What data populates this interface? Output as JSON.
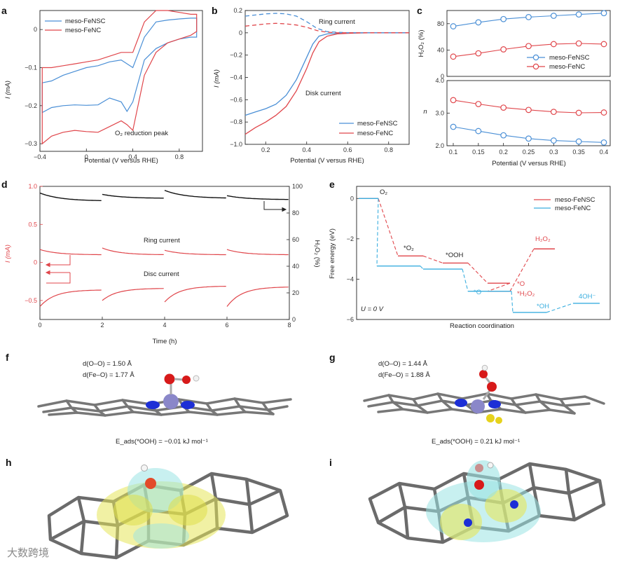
{
  "colors": {
    "blue": "#4a8fd6",
    "red": "#e0464b",
    "black": "#111111",
    "cyan": "#3aaedf",
    "molgray": "#777777"
  },
  "panels": {
    "a": "a",
    "b": "b",
    "c": "c",
    "d": "d",
    "e": "e",
    "f": "f",
    "g": "g",
    "h": "h",
    "i": "i"
  },
  "watermark": "大数跨境",
  "chart_data": [
    {
      "id": "a",
      "type": "line",
      "xlabel": "Potential (V versus RHE)",
      "ylabel": "I (mA)",
      "xlim": [
        -0.4,
        1.0
      ],
      "ylim": [
        -0.32,
        0.05
      ],
      "xticks": [
        -0.4,
        0.0,
        0.4,
        0.8
      ],
      "xtick_labels": [
        "−0.4",
        "0",
        "0.4",
        "0.8"
      ],
      "yticks": [
        0,
        -0.1,
        -0.2,
        -0.3
      ],
      "ytick_labels": [
        "0",
        "−0.1",
        "−0.2",
        "−0.3"
      ],
      "legend": [
        "meso-FeNSC",
        "meso-FeNC"
      ],
      "annotation": "O₂ reduction peak",
      "series": [
        {
          "name": "meso-FeNSC",
          "color": "blue",
          "x": [
            -0.38,
            -0.3,
            -0.2,
            -0.1,
            0.0,
            0.1,
            0.2,
            0.3,
            0.35,
            0.4,
            0.5,
            0.6,
            0.7,
            0.8,
            0.9,
            0.95,
            0.95,
            0.9,
            0.8,
            0.7,
            0.6,
            0.5,
            0.45,
            0.4,
            0.3,
            0.2,
            0.1,
            0.0,
            -0.1,
            -0.2,
            -0.3,
            -0.38
          ],
          "y": [
            -0.218,
            -0.205,
            -0.2,
            -0.198,
            -0.199,
            -0.198,
            -0.18,
            -0.19,
            -0.215,
            -0.19,
            -0.08,
            -0.05,
            -0.035,
            -0.025,
            -0.02,
            -0.02,
            0.03,
            0.03,
            0.028,
            0.025,
            0.02,
            -0.02,
            -0.06,
            -0.1,
            -0.08,
            -0.085,
            -0.095,
            -0.1,
            -0.11,
            -0.12,
            -0.135,
            -0.14
          ]
        },
        {
          "name": "meso-FeNC",
          "color": "red",
          "x": [
            -0.38,
            -0.3,
            -0.2,
            -0.1,
            0.0,
            0.1,
            0.2,
            0.3,
            0.35,
            0.4,
            0.5,
            0.6,
            0.7,
            0.8,
            0.9,
            0.95,
            0.95,
            0.9,
            0.8,
            0.7,
            0.6,
            0.5,
            0.45,
            0.4,
            0.3,
            0.2,
            0.1,
            0.0,
            -0.1,
            -0.2,
            -0.3,
            -0.38
          ],
          "y": [
            -0.3,
            -0.28,
            -0.27,
            -0.265,
            -0.268,
            -0.27,
            -0.255,
            -0.24,
            -0.25,
            -0.265,
            -0.12,
            -0.06,
            -0.035,
            -0.025,
            -0.015,
            -0.005,
            0.04,
            0.04,
            0.045,
            0.05,
            0.05,
            0.02,
            -0.02,
            -0.06,
            -0.06,
            -0.07,
            -0.08,
            -0.085,
            -0.09,
            -0.095,
            -0.1,
            -0.1
          ]
        }
      ]
    },
    {
      "id": "b",
      "type": "line",
      "xlabel": "Potential (V versus RHE)",
      "ylabel": "I (mA)",
      "xlim": [
        0.1,
        0.9
      ],
      "ylim": [
        -1.0,
        0.2
      ],
      "xticks": [
        0.2,
        0.4,
        0.6,
        0.8
      ],
      "xtick_labels": [
        "0.2",
        "0.4",
        "0.6",
        "0.8"
      ],
      "yticks": [
        0.2,
        0,
        -0.2,
        -0.4,
        -0.6,
        -0.8,
        -1.0
      ],
      "ytick_labels": [
        "0.2",
        "0",
        "−0.2",
        "−0.4",
        "−0.6",
        "−0.8",
        "−1.0"
      ],
      "legend": [
        "meso-FeNSC",
        "meso-FeNC"
      ],
      "annotations": [
        "Ring current",
        "Disk current"
      ],
      "series": [
        {
          "name": "meso-FeNSC disk",
          "color": "blue",
          "style": "solid",
          "x": [
            0.1,
            0.15,
            0.2,
            0.25,
            0.3,
            0.35,
            0.4,
            0.43,
            0.46,
            0.5,
            0.55,
            0.6,
            0.7,
            0.8,
            0.9
          ],
          "y": [
            -0.74,
            -0.71,
            -0.68,
            -0.64,
            -0.56,
            -0.42,
            -0.22,
            -0.1,
            -0.03,
            -0.01,
            -0.005,
            0,
            0,
            0,
            0
          ]
        },
        {
          "name": "meso-FeNC disk",
          "color": "red",
          "style": "solid",
          "x": [
            0.1,
            0.15,
            0.2,
            0.25,
            0.3,
            0.35,
            0.4,
            0.43,
            0.46,
            0.5,
            0.55,
            0.6,
            0.7,
            0.8,
            0.9
          ],
          "y": [
            -0.91,
            -0.85,
            -0.8,
            -0.74,
            -0.66,
            -0.52,
            -0.32,
            -0.18,
            -0.08,
            -0.03,
            -0.01,
            -0.005,
            0,
            0,
            0
          ]
        },
        {
          "name": "meso-FeNSC ring",
          "color": "blue",
          "style": "dashed",
          "x": [
            0.1,
            0.15,
            0.2,
            0.25,
            0.3,
            0.35,
            0.4,
            0.45,
            0.5,
            0.55,
            0.6,
            0.7,
            0.8,
            0.9
          ],
          "y": [
            0.15,
            0.16,
            0.17,
            0.175,
            0.17,
            0.15,
            0.1,
            0.04,
            0.01,
            0.005,
            0,
            0,
            0,
            0
          ]
        },
        {
          "name": "meso-FeNC ring",
          "color": "red",
          "style": "dashed",
          "x": [
            0.1,
            0.15,
            0.2,
            0.25,
            0.3,
            0.35,
            0.4,
            0.45,
            0.5,
            0.55,
            0.6,
            0.7,
            0.8,
            0.9
          ],
          "y": [
            0.06,
            0.07,
            0.08,
            0.085,
            0.08,
            0.07,
            0.05,
            0.02,
            0.005,
            0,
            0,
            0,
            0,
            0
          ]
        }
      ]
    },
    {
      "id": "c-top",
      "type": "line",
      "ylabel": "H₂O₂ (%)",
      "xlim": [
        0.1,
        0.4
      ],
      "ylim": [
        0,
        100
      ],
      "yticks": [
        0,
        40,
        80
      ],
      "ytick_labels": [
        "0",
        "40",
        "80"
      ],
      "legend": [
        "meso-FeNSC",
        "meso-FeNC"
      ],
      "x": [
        0.1,
        0.15,
        0.2,
        0.25,
        0.3,
        0.35,
        0.4
      ],
      "series": [
        {
          "name": "meso-FeNSC",
          "color": "blue",
          "values": [
            76,
            82,
            87,
            90,
            92,
            94,
            96
          ]
        },
        {
          "name": "meso-FeNC",
          "color": "red",
          "values": [
            30,
            35,
            41,
            46,
            49,
            50,
            49
          ]
        }
      ]
    },
    {
      "id": "c-bottom",
      "type": "line",
      "xlabel": "Potential (V versus RHE)",
      "ylabel": "n",
      "xlim": [
        0.1,
        0.4
      ],
      "ylim": [
        2.0,
        4.0
      ],
      "xticks": [
        0.1,
        0.15,
        0.2,
        0.25,
        0.3,
        0.35,
        0.4
      ],
      "xtick_labels": [
        "0.1",
        "0.15",
        "0.2",
        "0.25",
        "0.3",
        "0.35",
        "0.4"
      ],
      "yticks": [
        2.0,
        3.0,
        4.0
      ],
      "ytick_labels": [
        "2.0",
        "3.0",
        "4.0"
      ],
      "x": [
        0.1,
        0.15,
        0.2,
        0.25,
        0.3,
        0.35,
        0.4
      ],
      "series": [
        {
          "name": "meso-FeNSC",
          "color": "blue",
          "values": [
            2.58,
            2.45,
            2.32,
            2.22,
            2.16,
            2.13,
            2.1
          ]
        },
        {
          "name": "meso-FeNC",
          "color": "red",
          "values": [
            3.4,
            3.28,
            3.17,
            3.1,
            3.04,
            3.01,
            3.02
          ]
        }
      ]
    },
    {
      "id": "d",
      "type": "line",
      "xlabel": "Time (h)",
      "ylabel": "I (mA)",
      "ylabel_right": "H₂O₂ (%)",
      "xlim": [
        0,
        8
      ],
      "ylim": [
        -0.75,
        1.0
      ],
      "ylim_right": [
        0,
        100
      ],
      "xticks": [
        0,
        2,
        4,
        6,
        8
      ],
      "xtick_labels": [
        "0",
        "2",
        "4",
        "6",
        "8"
      ],
      "yticks": [
        1.0,
        0.5,
        0,
        -0.5
      ],
      "ytick_labels": [
        "1.0",
        "0.5",
        "0",
        "−0.5"
      ],
      "yticks_right": [
        100,
        80,
        60,
        40,
        20,
        0
      ],
      "ytick_labels_right": [
        "100",
        "80",
        "60",
        "40",
        "20",
        "0"
      ],
      "annotations": [
        "Ring current",
        "Disc current"
      ],
      "segments": [
        0,
        2,
        4,
        6,
        8
      ],
      "h2o2_start": [
        95,
        94,
        97,
        93
      ],
      "h2o2_end": [
        89,
        91,
        91,
        90
      ],
      "ring_start": [
        0.17,
        0.19,
        0.16,
        0.17
      ],
      "ring_end": [
        0.1,
        0.1,
        0.1,
        0.1
      ],
      "disc_start": [
        -0.58,
        -0.5,
        -0.52,
        -0.58
      ],
      "disc_end": [
        -0.36,
        -0.34,
        -0.31,
        -0.32
      ]
    },
    {
      "id": "e",
      "type": "line",
      "xlabel": "Reaction coordination",
      "ylabel": "Free energy (eV)",
      "ylim": [
        -6,
        0.6
      ],
      "yticks": [
        0,
        -2,
        -4,
        -6
      ],
      "ytick_labels": [
        "0",
        "−2",
        "−4",
        "−6"
      ],
      "legend": [
        "meso-FeNSC",
        "meso-FeNC"
      ],
      "condition": "U = 0 V",
      "state_labels": [
        "O₂",
        "*O₂",
        "*OOH",
        "*O",
        "*O",
        "*H₂O₂",
        "H₂O₂",
        "*OH",
        "4OH⁻"
      ],
      "series": [
        {
          "name": "meso-FeNSC",
          "color": "red",
          "steps": [
            0,
            -2.85,
            -3.2,
            -4.2,
            -4.6,
            -2.5
          ]
        },
        {
          "name": "meso-FeNC",
          "color": "cyan",
          "steps": [
            0,
            -3.35,
            -3.5,
            -4.6,
            -5.65,
            -5.2
          ]
        }
      ]
    }
  ],
  "structures": {
    "f": {
      "d_oo": "d(O–O) = 1.50 Å",
      "d_feo": "d(Fe–O) = 1.77 Å",
      "eads": "E_ads(*OOH) = −0.01 kJ mol⁻¹"
    },
    "g": {
      "d_oo": "d(O–O) = 1.44 Å",
      "d_feo": "d(Fe–O) = 1.88 Å",
      "eads": "E_ads(*OOH) = 0.21 kJ mol⁻¹"
    }
  }
}
